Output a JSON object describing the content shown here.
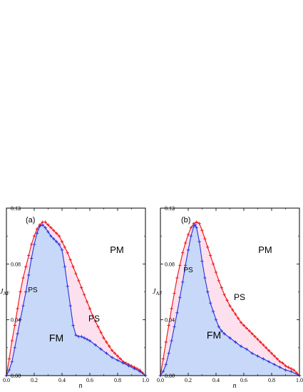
{
  "chart_data": [
    {
      "type": "area",
      "panel_label": "(a)",
      "xlabel": "n",
      "ylabel_main": "J",
      "ylabel_sub": "AF",
      "xlim": [
        0,
        1.0
      ],
      "ylim": [
        0,
        0.12
      ],
      "x_ticks": [
        "0.0",
        "0.2",
        "0.4",
        "0.6",
        "0.8",
        "1.0"
      ],
      "y_ticks": [
        "0.00",
        "0.04",
        "0.08",
        "0.12"
      ],
      "regions": {
        "pm": "PM",
        "ps_left": "PS",
        "ps_right": "PS",
        "fm": "FM"
      },
      "colors": {
        "outer_line": "#ee1111",
        "inner_line": "#2233dd",
        "ps_fill": "#fde0ee",
        "fm_fill": "#c8d8f8"
      },
      "series": [
        {
          "role": "outer",
          "points": [
            [
              0.0,
              0.0
            ],
            [
              0.02,
              0.012
            ],
            [
              0.04,
              0.025
            ],
            [
              0.06,
              0.036
            ],
            [
              0.08,
              0.048
            ],
            [
              0.1,
              0.06
            ],
            [
              0.12,
              0.07
            ],
            [
              0.14,
              0.078
            ],
            [
              0.16,
              0.086
            ],
            [
              0.18,
              0.094
            ],
            [
              0.2,
              0.1
            ],
            [
              0.22,
              0.105
            ],
            [
              0.24,
              0.108
            ],
            [
              0.26,
              0.11
            ],
            [
              0.28,
              0.11
            ],
            [
              0.3,
              0.108
            ],
            [
              0.32,
              0.106
            ],
            [
              0.34,
              0.104
            ],
            [
              0.36,
              0.102
            ],
            [
              0.38,
              0.1
            ],
            [
              0.4,
              0.096
            ],
            [
              0.42,
              0.092
            ],
            [
              0.44,
              0.088
            ],
            [
              0.46,
              0.083
            ],
            [
              0.48,
              0.078
            ],
            [
              0.5,
              0.073
            ],
            [
              0.52,
              0.068
            ],
            [
              0.54,
              0.063
            ],
            [
              0.56,
              0.058
            ],
            [
              0.58,
              0.053
            ],
            [
              0.6,
              0.048
            ],
            [
              0.62,
              0.043
            ],
            [
              0.64,
              0.039
            ],
            [
              0.66,
              0.035
            ],
            [
              0.68,
              0.031
            ],
            [
              0.7,
              0.027
            ],
            [
              0.72,
              0.024
            ],
            [
              0.74,
              0.021
            ],
            [
              0.76,
              0.018
            ],
            [
              0.78,
              0.016
            ],
            [
              0.8,
              0.014
            ],
            [
              0.82,
              0.012
            ],
            [
              0.84,
              0.01
            ],
            [
              0.86,
              0.009
            ],
            [
              0.88,
              0.008
            ],
            [
              0.9,
              0.007
            ],
            [
              0.92,
              0.006
            ],
            [
              0.94,
              0.005
            ],
            [
              0.96,
              0.004
            ],
            [
              0.98,
              0.002
            ],
            [
              1.0,
              0.0
            ]
          ]
        },
        {
          "role": "inner",
          "points": [
            [
              0.0,
              0.0
            ],
            [
              0.02,
              0.004
            ],
            [
              0.04,
              0.01
            ],
            [
              0.06,
              0.02
            ],
            [
              0.08,
              0.03
            ],
            [
              0.1,
              0.04
            ],
            [
              0.12,
              0.05
            ],
            [
              0.14,
              0.06
            ],
            [
              0.16,
              0.072
            ],
            [
              0.18,
              0.084
            ],
            [
              0.2,
              0.094
            ],
            [
              0.22,
              0.102
            ],
            [
              0.24,
              0.107
            ],
            [
              0.26,
              0.108
            ],
            [
              0.28,
              0.106
            ],
            [
              0.3,
              0.103
            ],
            [
              0.32,
              0.1
            ],
            [
              0.34,
              0.098
            ],
            [
              0.36,
              0.096
            ],
            [
              0.38,
              0.094
            ],
            [
              0.4,
              0.09
            ],
            [
              0.42,
              0.078
            ],
            [
              0.44,
              0.064
            ],
            [
              0.46,
              0.05
            ],
            [
              0.48,
              0.036
            ],
            [
              0.5,
              0.029
            ],
            [
              0.52,
              0.028
            ],
            [
              0.54,
              0.028
            ],
            [
              0.56,
              0.027
            ],
            [
              0.58,
              0.026
            ],
            [
              0.6,
              0.025
            ],
            [
              0.64,
              0.022
            ],
            [
              0.68,
              0.019
            ],
            [
              0.72,
              0.016
            ],
            [
              0.76,
              0.013
            ],
            [
              0.8,
              0.011
            ],
            [
              0.84,
              0.009
            ],
            [
              0.88,
              0.007
            ],
            [
              0.92,
              0.005
            ],
            [
              0.96,
              0.003
            ],
            [
              1.0,
              0.0
            ]
          ]
        }
      ]
    },
    {
      "type": "area",
      "panel_label": "(b)",
      "xlabel": "n",
      "ylabel_main": "J",
      "ylabel_sub": "AF",
      "xlim": [
        0,
        1.0
      ],
      "ylim": [
        0,
        0.12
      ],
      "x_ticks": [
        "0.0",
        "0.2",
        "0.4",
        "0.6",
        "0.8",
        "1.0"
      ],
      "y_ticks": [
        "0.00",
        "0.04",
        "0.08",
        "0.12"
      ],
      "regions": {
        "pm": "PM",
        "ps_left": "PS",
        "ps_right": "PS",
        "fm": "FM"
      },
      "colors": {
        "outer_line": "#ee1111",
        "inner_line": "#2233dd",
        "ps_fill": "#fde0ee",
        "fm_fill": "#c8d8f8"
      },
      "series": [
        {
          "role": "outer",
          "points": [
            [
              0.0,
              0.0
            ],
            [
              0.02,
              0.012
            ],
            [
              0.04,
              0.024
            ],
            [
              0.06,
              0.036
            ],
            [
              0.08,
              0.048
            ],
            [
              0.1,
              0.059
            ],
            [
              0.12,
              0.07
            ],
            [
              0.14,
              0.079
            ],
            [
              0.16,
              0.088
            ],
            [
              0.18,
              0.095
            ],
            [
              0.2,
              0.101
            ],
            [
              0.22,
              0.106
            ],
            [
              0.24,
              0.109
            ],
            [
              0.26,
              0.11
            ],
            [
              0.28,
              0.109
            ],
            [
              0.3,
              0.104
            ],
            [
              0.32,
              0.098
            ],
            [
              0.34,
              0.092
            ],
            [
              0.36,
              0.086
            ],
            [
              0.38,
              0.08
            ],
            [
              0.4,
              0.074
            ],
            [
              0.42,
              0.068
            ],
            [
              0.44,
              0.063
            ],
            [
              0.46,
              0.058
            ],
            [
              0.48,
              0.054
            ],
            [
              0.5,
              0.05
            ],
            [
              0.52,
              0.047
            ],
            [
              0.54,
              0.044
            ],
            [
              0.56,
              0.041
            ],
            [
              0.58,
              0.038
            ],
            [
              0.6,
              0.036
            ],
            [
              0.62,
              0.034
            ],
            [
              0.64,
              0.032
            ],
            [
              0.66,
              0.03
            ],
            [
              0.68,
              0.028
            ],
            [
              0.7,
              0.026
            ],
            [
              0.72,
              0.024
            ],
            [
              0.74,
              0.022
            ],
            [
              0.76,
              0.02
            ],
            [
              0.78,
              0.018
            ],
            [
              0.8,
              0.016
            ],
            [
              0.82,
              0.014
            ],
            [
              0.84,
              0.012
            ],
            [
              0.86,
              0.01
            ],
            [
              0.88,
              0.009
            ],
            [
              0.9,
              0.007
            ],
            [
              0.92,
              0.006
            ],
            [
              0.94,
              0.005
            ],
            [
              0.96,
              0.004
            ],
            [
              0.98,
              0.002
            ],
            [
              1.0,
              0.0
            ]
          ]
        },
        {
          "role": "inner",
          "points": [
            [
              0.0,
              0.0
            ],
            [
              0.02,
              0.003
            ],
            [
              0.04,
              0.008
            ],
            [
              0.06,
              0.016
            ],
            [
              0.08,
              0.025
            ],
            [
              0.1,
              0.035
            ],
            [
              0.12,
              0.045
            ],
            [
              0.14,
              0.056
            ],
            [
              0.16,
              0.067
            ],
            [
              0.18,
              0.079
            ],
            [
              0.2,
              0.09
            ],
            [
              0.22,
              0.1
            ],
            [
              0.24,
              0.107
            ],
            [
              0.25,
              0.108
            ],
            [
              0.26,
              0.106
            ],
            [
              0.28,
              0.096
            ],
            [
              0.3,
              0.082
            ],
            [
              0.32,
              0.07
            ],
            [
              0.34,
              0.06
            ],
            [
              0.36,
              0.052
            ],
            [
              0.38,
              0.046
            ],
            [
              0.4,
              0.04
            ],
            [
              0.42,
              0.035
            ],
            [
              0.44,
              0.032
            ],
            [
              0.46,
              0.03
            ],
            [
              0.5,
              0.027
            ],
            [
              0.54,
              0.024
            ],
            [
              0.58,
              0.021
            ],
            [
              0.62,
              0.019
            ],
            [
              0.66,
              0.016
            ],
            [
              0.7,
              0.014
            ],
            [
              0.74,
              0.012
            ],
            [
              0.78,
              0.01
            ],
            [
              0.82,
              0.008
            ],
            [
              0.86,
              0.006
            ],
            [
              0.9,
              0.004
            ],
            [
              0.94,
              0.003
            ],
            [
              1.0,
              0.0
            ]
          ]
        }
      ]
    }
  ]
}
